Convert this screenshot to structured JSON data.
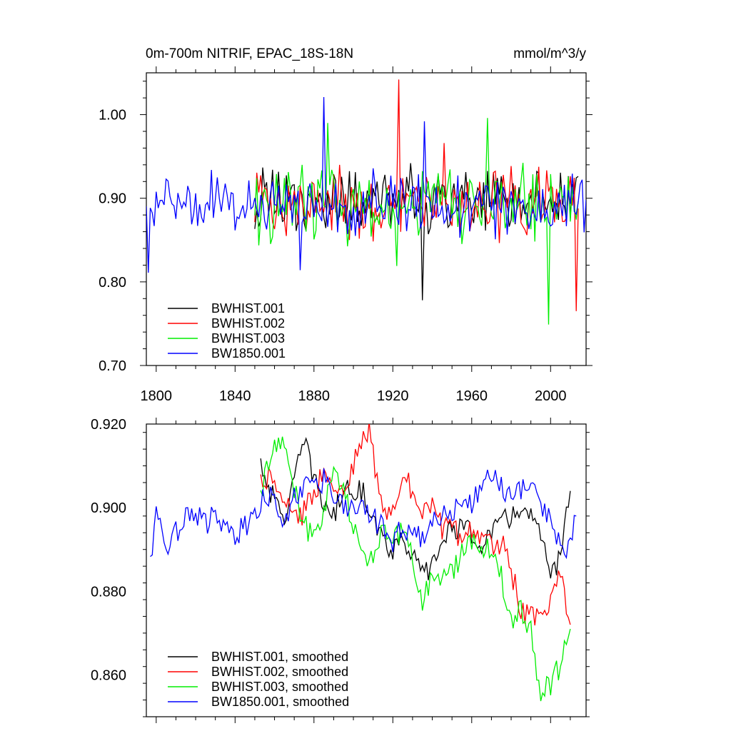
{
  "chart_data": [
    {
      "type": "line",
      "title": "0m-700m NITRIF, EPAC_18S-18N",
      "units": "mmol/m^3/y",
      "xlim": [
        1795,
        2018
      ],
      "ylim": [
        0.7,
        1.05
      ],
      "yticks": [
        0.7,
        0.8,
        0.9,
        1.0
      ],
      "ytick_labels": [
        "0.70",
        "0.80",
        "0.90",
        "1.00"
      ],
      "xticks": [
        1800,
        1840,
        1880,
        1920,
        1960,
        2000
      ],
      "xtick_labels": [
        "1800",
        "1840",
        "1880",
        "1920",
        "1960",
        "2000"
      ],
      "legend_position": "bottom-left",
      "series": [
        {
          "name": "BWHIST.001",
          "color": "#000000",
          "x_start": 1850,
          "x_end": 2014,
          "mean": 0.895,
          "spread": 0.03,
          "features": [
            [
              1935,
              0.778
            ],
            [
              1943,
              0.928
            ],
            [
              1993,
              0.932
            ]
          ]
        },
        {
          "name": "BWHIST.002",
          "color": "#ff0000",
          "x_start": 1850,
          "x_end": 2014,
          "mean": 0.895,
          "spread": 0.032,
          "features": [
            [
              1923,
              1.042
            ],
            [
              1946,
              0.966
            ],
            [
              2013,
              0.765
            ]
          ]
        },
        {
          "name": "BWHIST.003",
          "color": "#00ee00",
          "x_start": 1850,
          "x_end": 2014,
          "mean": 0.893,
          "spread": 0.033,
          "features": [
            [
              1887,
              0.99
            ],
            [
              1968,
              0.996
            ],
            [
              1999,
              0.749
            ],
            [
              1922,
              0.819
            ]
          ]
        },
        {
          "name": "BW1850.001",
          "color": "#0000ff",
          "x_start": 1795,
          "x_end": 2018,
          "mean": 0.893,
          "spread": 0.028,
          "features": [
            [
              1796,
              0.811
            ],
            [
              1885,
              1.021
            ],
            [
              1873,
              0.814
            ],
            [
              1936,
              0.992
            ]
          ]
        }
      ]
    },
    {
      "type": "line",
      "title": "",
      "xlim": [
        1795,
        2018
      ],
      "ylim": [
        0.85,
        0.92
      ],
      "yticks": [
        0.86,
        0.88,
        0.9,
        0.92
      ],
      "ytick_labels": [
        "0.860",
        "0.880",
        "0.900",
        "0.920"
      ],
      "legend_position": "bottom-left",
      "series": [
        {
          "name": "BWHIST.001, smoothed",
          "color": "#000000",
          "x": [
            1853,
            1860,
            1865,
            1870,
            1875,
            1880,
            1885,
            1890,
            1895,
            1900,
            1905,
            1910,
            1915,
            1920,
            1925,
            1930,
            1935,
            1940,
            1945,
            1950,
            1955,
            1960,
            1965,
            1970,
            1975,
            1980,
            1985,
            1990,
            1995,
            2000,
            2005,
            2010
          ],
          "y": [
            0.911,
            0.901,
            0.898,
            0.906,
            0.916,
            0.907,
            0.901,
            0.898,
            0.904,
            0.905,
            0.903,
            0.899,
            0.892,
            0.89,
            0.894,
            0.888,
            0.884,
            0.886,
            0.892,
            0.895,
            0.896,
            0.893,
            0.892,
            0.894,
            0.896,
            0.898,
            0.9,
            0.898,
            0.893,
            0.882,
            0.89,
            0.904
          ]
        },
        {
          "name": "BWHIST.002, smoothed",
          "color": "#ff0000",
          "x": [
            1853,
            1860,
            1865,
            1870,
            1875,
            1880,
            1885,
            1890,
            1895,
            1900,
            1905,
            1908,
            1912,
            1915,
            1920,
            1925,
            1930,
            1935,
            1940,
            1945,
            1950,
            1955,
            1960,
            1965,
            1970,
            1975,
            1980,
            1985,
            1990,
            1995,
            2000,
            2005,
            2010
          ],
          "y": [
            0.907,
            0.908,
            0.902,
            0.897,
            0.899,
            0.903,
            0.91,
            0.906,
            0.903,
            0.91,
            0.916,
            0.919,
            0.907,
            0.898,
            0.899,
            0.908,
            0.904,
            0.897,
            0.902,
            0.895,
            0.895,
            0.893,
            0.895,
            0.892,
            0.891,
            0.892,
            0.885,
            0.876,
            0.874,
            0.873,
            0.877,
            0.884,
            0.872
          ]
        },
        {
          "name": "BWHIST.003, smoothed",
          "color": "#00ee00",
          "x": [
            1853,
            1858,
            1862,
            1866,
            1870,
            1875,
            1880,
            1885,
            1890,
            1895,
            1900,
            1905,
            1910,
            1915,
            1920,
            1925,
            1930,
            1935,
            1940,
            1945,
            1950,
            1955,
            1960,
            1965,
            1970,
            1975,
            1980,
            1985,
            1990,
            1995,
            2000,
            2005,
            2010
          ],
          "y": [
            0.903,
            0.913,
            0.916,
            0.913,
            0.905,
            0.896,
            0.893,
            0.9,
            0.91,
            0.905,
            0.895,
            0.888,
            0.888,
            0.895,
            0.892,
            0.894,
            0.888,
            0.877,
            0.885,
            0.882,
            0.885,
            0.889,
            0.893,
            0.89,
            0.89,
            0.884,
            0.872,
            0.876,
            0.87,
            0.855,
            0.858,
            0.862,
            0.871
          ]
        },
        {
          "name": "BW1850.001, smoothed",
          "color": "#0000ff",
          "x": [
            1797,
            1800,
            1805,
            1810,
            1815,
            1820,
            1825,
            1830,
            1835,
            1840,
            1845,
            1850,
            1855,
            1860,
            1865,
            1870,
            1875,
            1880,
            1885,
            1890,
            1895,
            1900,
            1905,
            1910,
            1915,
            1920,
            1925,
            1930,
            1935,
            1940,
            1945,
            1950,
            1955,
            1960,
            1965,
            1970,
            1975,
            1980,
            1985,
            1990,
            1995,
            2000,
            2005,
            2010,
            2013
          ],
          "y": [
            0.887,
            0.899,
            0.891,
            0.894,
            0.898,
            0.899,
            0.896,
            0.898,
            0.895,
            0.893,
            0.896,
            0.898,
            0.904,
            0.902,
            0.897,
            0.902,
            0.905,
            0.904,
            0.907,
            0.903,
            0.9,
            0.902,
            0.899,
            0.897,
            0.896,
            0.892,
            0.895,
            0.894,
            0.893,
            0.896,
            0.898,
            0.899,
            0.902,
            0.901,
            0.905,
            0.907,
            0.906,
            0.902,
            0.904,
            0.906,
            0.902,
            0.896,
            0.891,
            0.89,
            0.898
          ]
        }
      ]
    }
  ]
}
